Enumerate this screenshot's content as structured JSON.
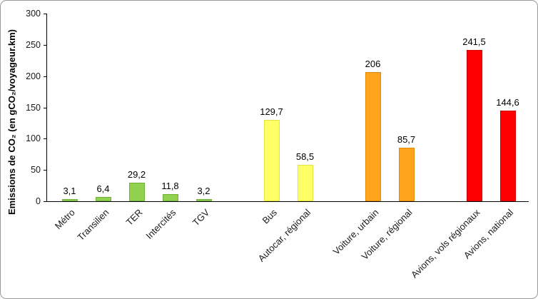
{
  "chart_data": {
    "type": "bar",
    "title": "",
    "xlabel": "",
    "ylabel": "Emissions de CO₂ (en gCO₂/voyageur.km)",
    "ylim": [
      0,
      300
    ],
    "yticks": [
      "0",
      "50",
      "100",
      "150",
      "200",
      "250",
      "300"
    ],
    "grid": false,
    "legend_position": "none",
    "decimal_separator": ",",
    "groups": [
      {
        "color": "#92D050",
        "border_color": "#6FB33A",
        "bars": [
          {
            "category": "Métro",
            "value": 3.1,
            "label": "3,1"
          },
          {
            "category": "Transilien",
            "value": 6.4,
            "label": "6,4"
          },
          {
            "category": "TER",
            "value": 29.2,
            "label": "29,2"
          },
          {
            "category": "Intercités",
            "value": 11.8,
            "label": "11,8"
          },
          {
            "category": "TGV",
            "value": 3.2,
            "label": "3,2"
          }
        ]
      },
      {
        "color": "#FFFF66",
        "border_color": "#E3E33F",
        "bars": [
          {
            "category": "Bus",
            "value": 129.7,
            "label": "129,7"
          },
          {
            "category": "Autocar, régional",
            "value": 58.5,
            "label": "58,5"
          }
        ]
      },
      {
        "color": "#FFA41C",
        "border_color": "#E08A00",
        "bars": [
          {
            "category": "Voiture, urbain",
            "value": 206,
            "label": "206"
          },
          {
            "category": "Voiture, régional",
            "value": 85.7,
            "label": "85,7"
          }
        ]
      },
      {
        "color": "#FE0000",
        "border_color": "#CC0000",
        "bars": [
          {
            "category": "Avions, vols régionaux",
            "value": 241.5,
            "label": "241,5"
          },
          {
            "category": "Avions, national",
            "value": 144.6,
            "label": "144,6"
          }
        ]
      }
    ]
  }
}
